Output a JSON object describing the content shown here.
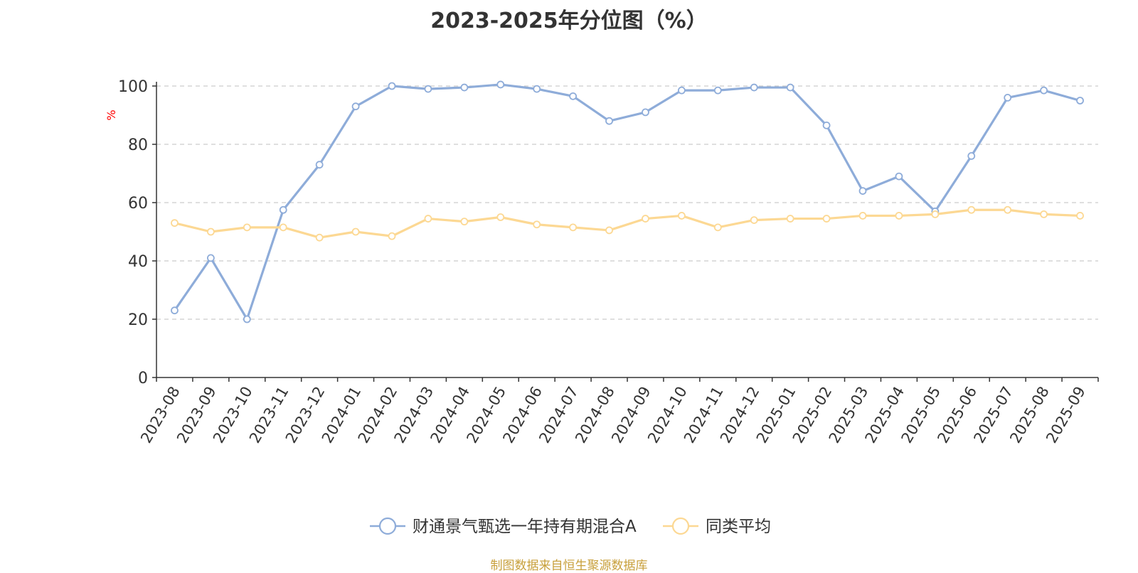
{
  "title": "2023-2025年分位图（%）",
  "footer": "制图数据来自恒生聚源数据库",
  "colors": {
    "series_fund": "#8eacd9",
    "series_avg": "#fcd893",
    "axis": "#333333",
    "grid": "#cccccc",
    "ylabel": "#ff0000",
    "footer": "#c8a03c"
  },
  "chart_data": {
    "type": "line",
    "ylabel": "%",
    "ylim": [
      0,
      100
    ],
    "yticks": [
      0,
      20,
      40,
      60,
      80,
      100
    ],
    "grid": "horizontal dashed",
    "legend_position": "bottom-center",
    "categories": [
      "2023-08",
      "2023-09",
      "2023-10",
      "2023-11",
      "2023-12",
      "2024-01",
      "2024-02",
      "2024-03",
      "2024-04",
      "2024-05",
      "2024-06",
      "2024-07",
      "2024-08",
      "2024-09",
      "2024-10",
      "2024-11",
      "2024-12",
      "2025-01",
      "2025-02",
      "2025-03",
      "2025-04",
      "2025-05",
      "2025-06",
      "2025-07",
      "2025-08",
      "2025-09"
    ],
    "series": [
      {
        "name": "财通景气甄选一年持有期混合A",
        "color": "#8eacd9",
        "values": [
          23,
          41,
          20,
          57.5,
          73,
          93,
          100,
          99,
          99.5,
          100.5,
          99,
          96.5,
          88,
          91,
          98.5,
          98.5,
          99.5,
          99.5,
          86.5,
          64,
          69,
          57,
          76,
          96,
          98.5,
          95
        ]
      },
      {
        "name": "同类平均",
        "color": "#fcd893",
        "values": [
          53,
          50,
          51.5,
          51.5,
          48,
          50,
          48.5,
          54.5,
          53.5,
          55,
          52.5,
          51.5,
          50.5,
          54.5,
          55.5,
          51.5,
          54,
          54.5,
          54.5,
          55.5,
          55.5,
          56,
          57.5,
          57.5,
          56,
          55.5
        ]
      }
    ]
  }
}
